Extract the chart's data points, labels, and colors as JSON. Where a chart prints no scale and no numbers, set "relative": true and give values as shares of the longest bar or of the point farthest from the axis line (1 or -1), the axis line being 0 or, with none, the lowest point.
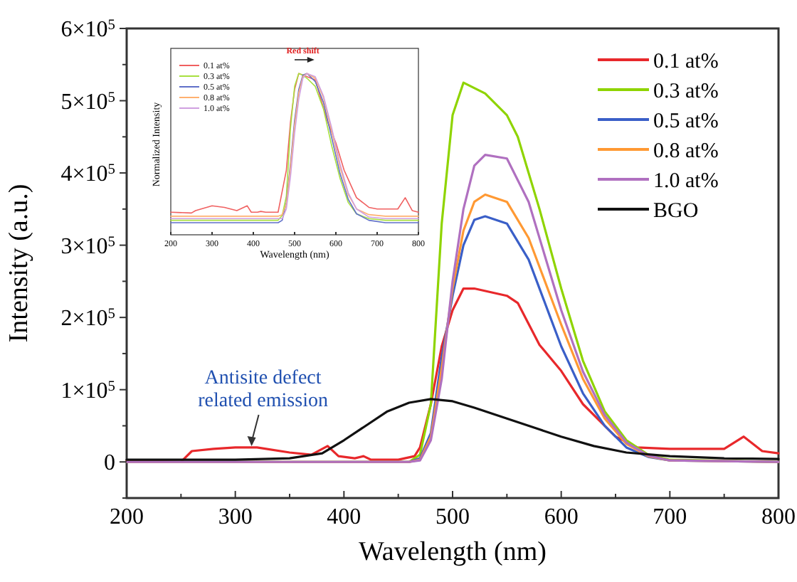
{
  "chart_data": [
    {
      "type": "line",
      "xlabel": "Wavelength (nm)",
      "ylabel": "Intensity (a.u.)",
      "xlim": [
        200,
        800
      ],
      "ylim": [
        -50000,
        600000
      ],
      "xticks": [
        200,
        {
          "value": 250,
          "label": null
        },
        300,
        {
          "value": 350,
          "label": null
        },
        400,
        {
          "value": 450,
          "label": null
        },
        500,
        {
          "value": 550,
          "label": null
        },
        600,
        {
          "value": 650,
          "label": null
        },
        700,
        {
          "value": 750,
          "label": null
        },
        800
      ],
      "yticks": [
        {
          "value": -50000,
          "label": null
        },
        0,
        {
          "value": 50000,
          "label": null
        },
        {
          "value": 100000,
          "label": "1×10$^{5}$"
        },
        {
          "value": 150000,
          "label": null
        },
        {
          "value": 200000,
          "label": "2×10$^{5}$"
        },
        {
          "value": 250000,
          "label": null
        },
        {
          "value": 300000,
          "label": "3×10$^{5}$"
        },
        {
          "value": 350000,
          "label": null
        },
        {
          "value": 400000,
          "label": "4×10$^{5}$"
        },
        {
          "value": 450000,
          "label": null
        },
        {
          "value": 500000,
          "label": "5×10$^{5}$"
        },
        {
          "value": 550000,
          "label": null
        },
        {
          "value": 600000,
          "label": "6×10$^{5}$"
        }
      ],
      "legend": "top right",
      "annotations": [
        {
          "text": "Antisite defect related emission",
          "x": 315,
          "y": 20000
        }
      ],
      "series": [
        {
          "name": "0.1 at%",
          "color": "#e8282b",
          "x": [
            200,
            250,
            260,
            280,
            300,
            320,
            350,
            370,
            385,
            395,
            410,
            418,
            425,
            450,
            465,
            470,
            480,
            490,
            500,
            510,
            520,
            550,
            560,
            580,
            600,
            620,
            650,
            670,
            700,
            750,
            768,
            785,
            800
          ],
          "values": [
            2000,
            0,
            15000,
            18000,
            20000,
            20000,
            13000,
            10000,
            22000,
            8000,
            5000,
            8000,
            3000,
            3000,
            8000,
            20000,
            80000,
            160000,
            210000,
            240000,
            240000,
            230000,
            220000,
            162000,
            126000,
            80000,
            35000,
            20000,
            18000,
            18000,
            35000,
            15000,
            12000
          ]
        },
        {
          "name": "0.3 at%",
          "color": "#8fd400",
          "x": [
            200,
            460,
            470,
            480,
            490,
            500,
            510,
            530,
            550,
            560,
            580,
            600,
            620,
            640,
            660,
            680,
            700,
            800
          ],
          "values": [
            0,
            0,
            10000,
            80000,
            330000,
            480000,
            525000,
            510000,
            480000,
            450000,
            350000,
            240000,
            140000,
            70000,
            30000,
            10000,
            3000,
            0
          ]
        },
        {
          "name": "0.5 at%",
          "color": "#3a5fc8",
          "x": [
            200,
            460,
            470,
            480,
            490,
            500,
            510,
            520,
            530,
            550,
            570,
            590,
            600,
            620,
            640,
            660,
            680,
            700,
            800
          ],
          "values": [
            0,
            0,
            5000,
            40000,
            145000,
            230000,
            300000,
            335000,
            340000,
            330000,
            280000,
            200000,
            160000,
            95000,
            50000,
            20000,
            7000,
            2000,
            0
          ]
        },
        {
          "name": "0.8 at%",
          "color": "#ff9933",
          "x": [
            200,
            460,
            470,
            480,
            490,
            500,
            510,
            520,
            530,
            550,
            570,
            590,
            600,
            620,
            640,
            660,
            680,
            700,
            800
          ],
          "values": [
            0,
            0,
            3000,
            35000,
            130000,
            240000,
            320000,
            360000,
            370000,
            360000,
            310000,
            230000,
            190000,
            115000,
            60000,
            25000,
            8000,
            2000,
            0
          ]
        },
        {
          "name": "1.0 at%",
          "color": "#b070c0",
          "x": [
            200,
            460,
            470,
            480,
            490,
            500,
            510,
            520,
            530,
            550,
            570,
            590,
            600,
            620,
            640,
            660,
            680,
            700,
            800
          ],
          "values": [
            0,
            0,
            2000,
            30000,
            115000,
            250000,
            350000,
            410000,
            425000,
            420000,
            360000,
            260000,
            210000,
            125000,
            65000,
            27000,
            9000,
            2000,
            0
          ]
        },
        {
          "name": "BGO",
          "color": "#111111",
          "x": [
            200,
            300,
            350,
            380,
            400,
            420,
            440,
            460,
            480,
            500,
            520,
            550,
            580,
            600,
            630,
            660,
            700,
            750,
            800
          ],
          "values": [
            3000,
            3000,
            5000,
            12000,
            30000,
            50000,
            70000,
            82000,
            87000,
            84000,
            75000,
            60000,
            45000,
            35000,
            22000,
            13000,
            8000,
            5000,
            4000
          ]
        }
      ]
    },
    {
      "type": "line",
      "relative": true,
      "xlabel": "Wavelength (nm)",
      "ylabel": "Normalized Intensity",
      "xlim": [
        200,
        800
      ],
      "xticks": [
        200,
        300,
        400,
        500,
        600,
        700,
        800
      ],
      "legend": "top left",
      "annotations": [
        "Red shift"
      ],
      "series": [
        {
          "name": "0.1 at%",
          "color": "#f06060",
          "x": [
            200,
            250,
            260,
            300,
            330,
            360,
            385,
            395,
            410,
            418,
            430,
            460,
            480,
            490,
            500,
            510,
            530,
            550,
            580,
            600,
            620,
            650,
            680,
            700,
            750,
            768,
            785,
            800
          ],
          "values": [
            0.14,
            0.135,
            0.15,
            0.18,
            0.17,
            0.15,
            0.18,
            0.14,
            0.14,
            0.145,
            0.14,
            0.14,
            0.4,
            0.7,
            0.9,
            1.0,
            0.98,
            0.96,
            0.7,
            0.57,
            0.4,
            0.23,
            0.17,
            0.16,
            0.16,
            0.23,
            0.15,
            0.14
          ]
        },
        {
          "name": "0.3 at%",
          "color": "#a8e040",
          "x": [
            200,
            460,
            470,
            480,
            490,
            500,
            510,
            520,
            530,
            550,
            570,
            590,
            610,
            630,
            650,
            680,
            720,
            800
          ],
          "values": [
            0.09,
            0.09,
            0.12,
            0.24,
            0.66,
            0.92,
            1.0,
            0.99,
            0.97,
            0.92,
            0.78,
            0.55,
            0.35,
            0.2,
            0.13,
            0.1,
            0.09,
            0.09
          ]
        },
        {
          "name": "0.5 at%",
          "color": "#6070c8",
          "x": [
            200,
            460,
            470,
            480,
            490,
            500,
            510,
            520,
            530,
            550,
            570,
            590,
            610,
            630,
            650,
            680,
            720,
            800
          ],
          "values": [
            0.075,
            0.075,
            0.09,
            0.2,
            0.44,
            0.71,
            0.9,
            0.99,
            1.0,
            0.95,
            0.82,
            0.6,
            0.38,
            0.22,
            0.13,
            0.09,
            0.075,
            0.075
          ]
        },
        {
          "name": "0.8 at%",
          "color": "#ffb070",
          "x": [
            200,
            460,
            470,
            480,
            490,
            500,
            510,
            520,
            530,
            550,
            570,
            590,
            610,
            630,
            650,
            680,
            720,
            800
          ],
          "values": [
            0.115,
            0.115,
            0.125,
            0.19,
            0.42,
            0.68,
            0.88,
            0.98,
            1.0,
            0.97,
            0.85,
            0.64,
            0.42,
            0.25,
            0.16,
            0.125,
            0.115,
            0.115
          ]
        },
        {
          "name": "1.0 at%",
          "color": "#d0a0e0",
          "x": [
            200,
            460,
            470,
            480,
            490,
            500,
            510,
            520,
            530,
            550,
            570,
            590,
            610,
            630,
            650,
            680,
            720,
            800
          ],
          "values": [
            0.1,
            0.1,
            0.1,
            0.16,
            0.36,
            0.63,
            0.84,
            0.97,
            1.0,
            0.98,
            0.86,
            0.66,
            0.44,
            0.26,
            0.16,
            0.11,
            0.1,
            0.1
          ]
        }
      ]
    }
  ]
}
